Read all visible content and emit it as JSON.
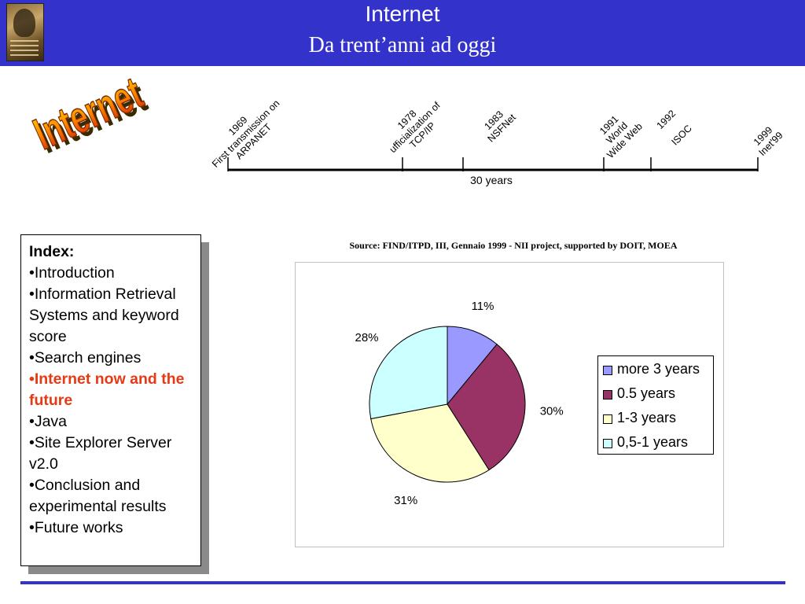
{
  "header": {
    "title": "Internet",
    "subtitle": "Da trent’anni ad oggi",
    "logo_icon": "university-seal-icon",
    "color": "#3333cc"
  },
  "wordart": {
    "text": "Internet",
    "colors": [
      "#ffdd00",
      "#ff8800",
      "#cc1100"
    ]
  },
  "timeline": {
    "events": [
      {
        "year": "1969",
        "lines": [
          "1969",
          "First transmission on",
          "ARPANET"
        ]
      },
      {
        "year": "1978",
        "lines": [
          "1978",
          "ufficialization of",
          "TCP/IP"
        ]
      },
      {
        "year": "1983",
        "lines": [
          "1983",
          "NSFNet"
        ]
      },
      {
        "year": "1991",
        "lines": [
          "1991",
          "World",
          "Wide Web"
        ]
      },
      {
        "year": "1992",
        "lines": [
          "1992",
          "",
          "ISOC"
        ]
      },
      {
        "year": "1999",
        "lines": [
          "1999",
          "Inet'99"
        ]
      }
    ],
    "span_label": "30 years"
  },
  "index": {
    "title": "Index:",
    "items": [
      {
        "label": "•Introduction",
        "active": false
      },
      {
        "label": "•Information Retrieval Systems and keyword score",
        "active": false
      },
      {
        "label": "•Search engines",
        "active": false
      },
      {
        "label": "•Internet now and the future",
        "active": true
      },
      {
        "label": "•Java",
        "active": false
      },
      {
        "label": "•Site Explorer Server v2.0",
        "active": false
      },
      {
        "label": "•Conclusion and experimental results",
        "active": false
      },
      {
        "label": "•Future works",
        "active": false
      }
    ],
    "active_color": "#e53a14"
  },
  "chart_data": {
    "type": "pie",
    "title": "Source: FIND/ITPD, III, Gennaio 1999 - NII project, supported by DOIT, MOEA",
    "slices": [
      {
        "label": "more 3 years",
        "value": 11,
        "display": "11%",
        "color": "#9999ff"
      },
      {
        "label": "0.5 years",
        "value": 30,
        "display": "30%",
        "color": "#993366"
      },
      {
        "label": "1-3 years",
        "value": 31,
        "display": "31%",
        "color": "#ffffcc"
      },
      {
        "label": "0,5-1 years",
        "value": 28,
        "display": "28%",
        "color": "#ccffff"
      }
    ],
    "legend": {
      "position": "right"
    }
  }
}
